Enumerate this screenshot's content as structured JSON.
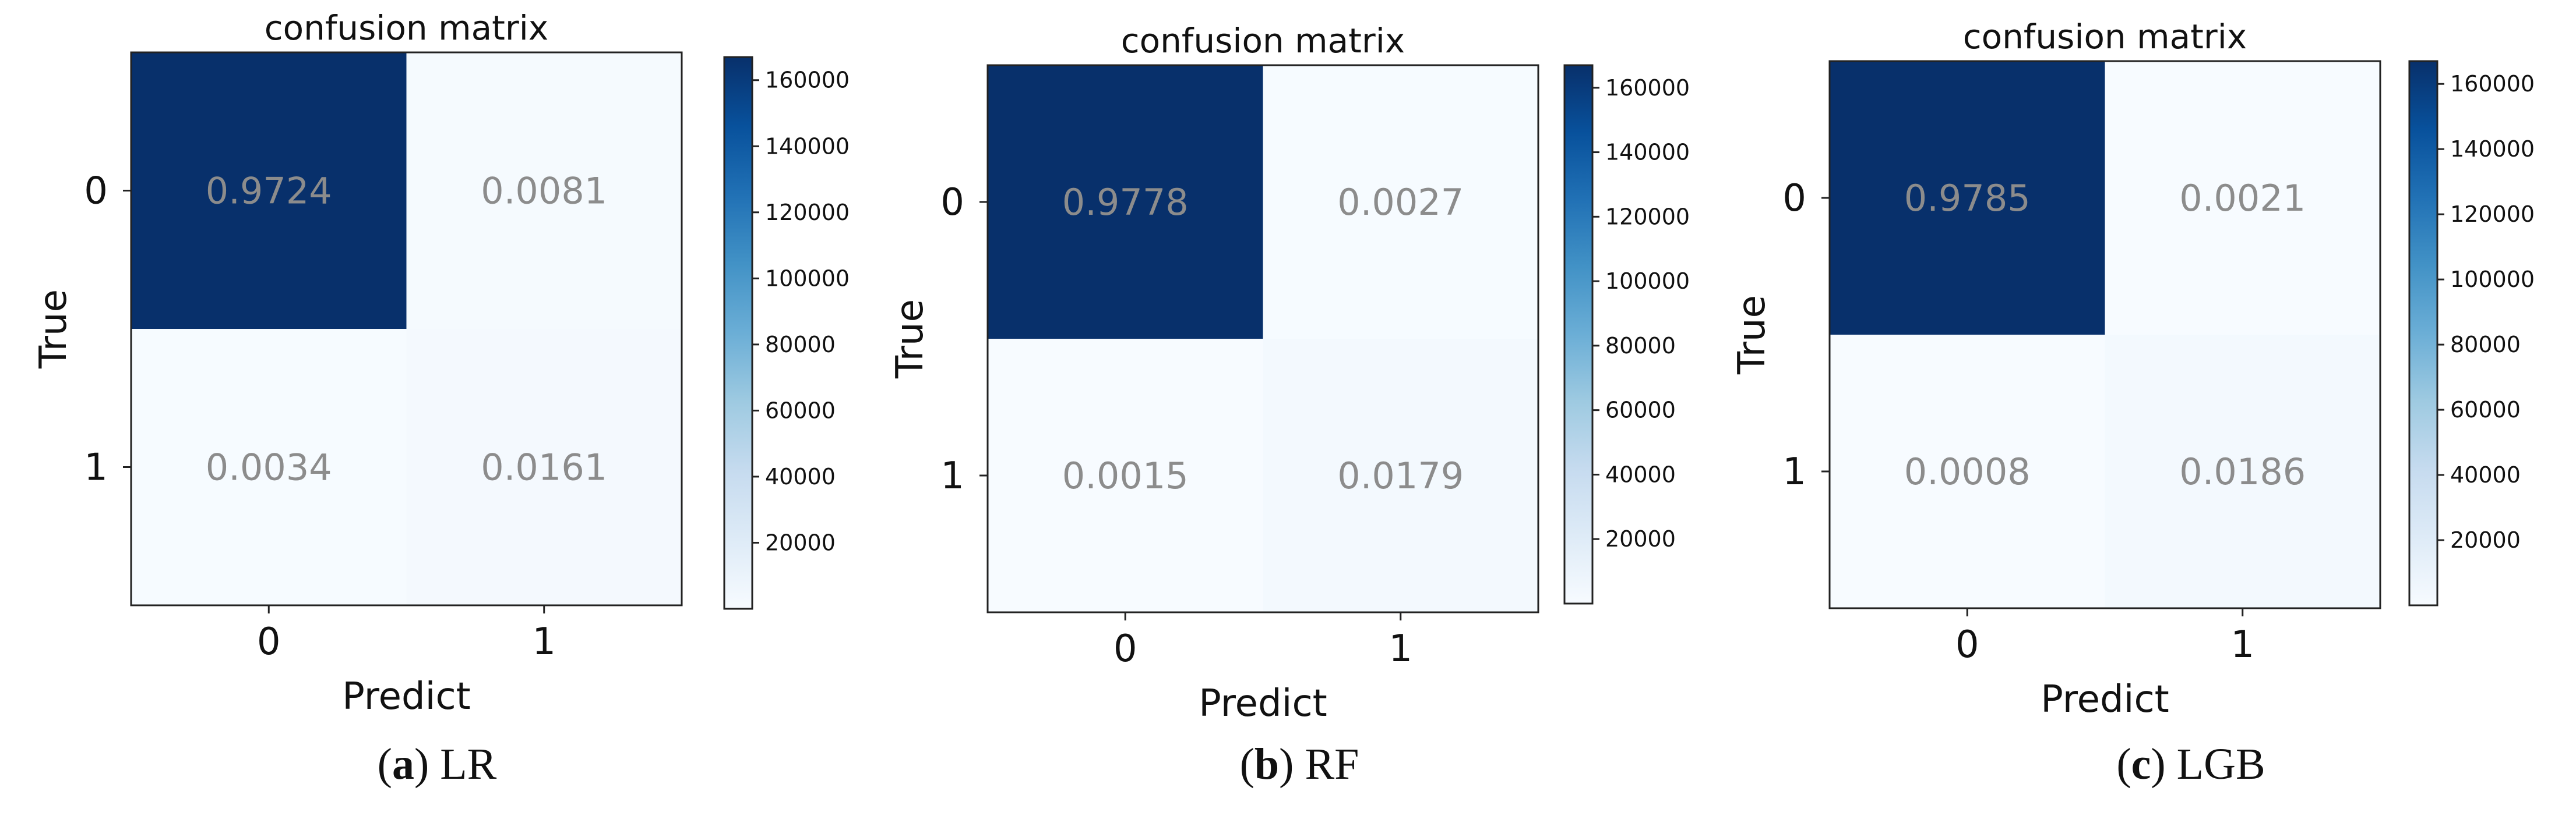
{
  "chart_data": [
    {
      "type": "heatmap",
      "title": "confusion matrix",
      "xlabel": "Predict",
      "ylabel": "True",
      "x_ticks": [
        "0",
        "1"
      ],
      "y_ticks": [
        "0",
        "1"
      ],
      "cells": [
        [
          0.9724,
          0.0081
        ],
        [
          0.0034,
          0.0161
        ]
      ],
      "cell_labels": [
        [
          "0.9724",
          "0.0081"
        ],
        [
          "0.0034",
          "0.0161"
        ]
      ],
      "colorbar": {
        "min": 0,
        "max": 167000,
        "ticks": [
          "20000",
          "40000",
          "60000",
          "80000",
          "100000",
          "120000",
          "140000",
          "160000"
        ]
      },
      "colormap": "Blues",
      "caption_letter": "a",
      "caption_text": "LR"
    },
    {
      "type": "heatmap",
      "title": "confusion matrix",
      "xlabel": "Predict",
      "ylabel": "True",
      "x_ticks": [
        "0",
        "1"
      ],
      "y_ticks": [
        "0",
        "1"
      ],
      "cells": [
        [
          0.9778,
          0.0027
        ],
        [
          0.0015,
          0.0179
        ]
      ],
      "cell_labels": [
        [
          "0.9778",
          "0.0027"
        ],
        [
          "0.0015",
          "0.0179"
        ]
      ],
      "colorbar": {
        "min": 0,
        "max": 167000,
        "ticks": [
          "20000",
          "40000",
          "60000",
          "80000",
          "100000",
          "120000",
          "140000",
          "160000"
        ]
      },
      "colormap": "Blues",
      "caption_letter": "b",
      "caption_text": "RF"
    },
    {
      "type": "heatmap",
      "title": "confusion matrix",
      "xlabel": "Predict",
      "ylabel": "True",
      "x_ticks": [
        "0",
        "1"
      ],
      "y_ticks": [
        "0",
        "1"
      ],
      "cells": [
        [
          0.9785,
          0.0021
        ],
        [
          0.0008,
          0.0186
        ]
      ],
      "cell_labels": [
        [
          "0.9785",
          "0.0021"
        ],
        [
          "0.0008",
          "0.0186"
        ]
      ],
      "colorbar": {
        "min": 0,
        "max": 167000,
        "ticks": [
          "20000",
          "40000",
          "60000",
          "80000",
          "100000",
          "120000",
          "140000",
          "160000"
        ]
      },
      "colormap": "Blues",
      "caption_letter": "c",
      "caption_text": "LGB"
    }
  ],
  "colors": {
    "cell_dark": "#08306b",
    "cell_light": "#f7fbff",
    "cell_label": "#8c8c8c",
    "text": "#111111"
  }
}
